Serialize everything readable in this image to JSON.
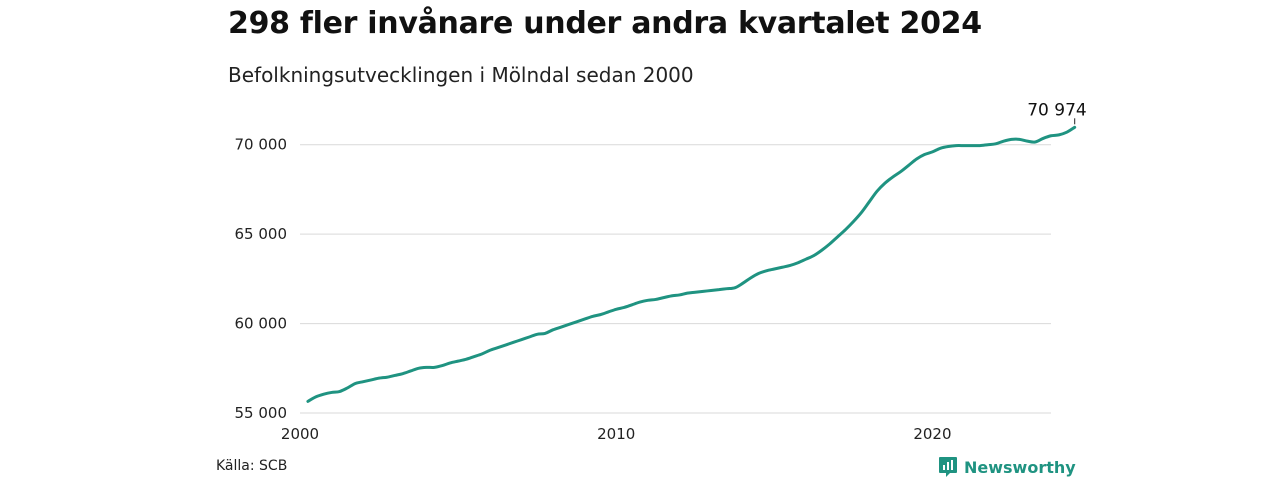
{
  "title": "298 fler invånare under andra kvartalet 2024",
  "subtitle": "Befolkningsutvecklingen i Mölndal sedan 2000",
  "source": "Källa: SCB",
  "brand": {
    "name": "Newsworthy",
    "icon": "newsworthy-logo-icon",
    "color": "#1f9381"
  },
  "line_color": "#1f9381",
  "chart_data": {
    "type": "line",
    "title": "298 fler invånare under andra kvartalet 2024",
    "subtitle": "Befolkningsutvecklingen i Mölndal sedan 2000",
    "xlabel": "",
    "ylabel": "",
    "xlim": [
      2000,
      2025.3
    ],
    "ylim": [
      55000,
      72500
    ],
    "y_ticks": [
      55000,
      60000,
      65000,
      70000
    ],
    "y_tick_labels": [
      "55 000",
      "60 000",
      "65 000",
      "70 000"
    ],
    "x_ticks": [
      2000,
      2010,
      2020
    ],
    "x_tick_labels": [
      "2000",
      "2010",
      "2020"
    ],
    "grid": true,
    "end_label": "70 974",
    "series": [
      {
        "name": "",
        "x": [
          2000.25,
          2000.5,
          2000.75,
          2001.0,
          2001.25,
          2001.5,
          2001.75,
          2002.0,
          2002.25,
          2002.5,
          2002.75,
          2003.0,
          2003.25,
          2003.5,
          2003.75,
          2004.0,
          2004.25,
          2004.5,
          2004.75,
          2005.0,
          2005.25,
          2005.5,
          2005.75,
          2006.0,
          2006.25,
          2006.5,
          2006.75,
          2007.0,
          2007.25,
          2007.5,
          2007.75,
          2008.0,
          2008.25,
          2008.5,
          2008.75,
          2009.0,
          2009.25,
          2009.5,
          2009.75,
          2010.0,
          2010.25,
          2010.5,
          2010.75,
          2011.0,
          2011.25,
          2011.5,
          2011.75,
          2012.0,
          2012.25,
          2012.5,
          2012.75,
          2013.0,
          2013.25,
          2013.5,
          2013.75,
          2014.0,
          2014.25,
          2014.5,
          2014.75,
          2015.0,
          2015.25,
          2015.5,
          2015.75,
          2016.0,
          2016.25,
          2016.5,
          2016.75,
          2017.0,
          2017.25,
          2017.5,
          2017.75,
          2018.0,
          2018.25,
          2018.5,
          2018.75,
          2019.0,
          2019.25,
          2019.5,
          2019.75,
          2020.0,
          2020.25,
          2020.5,
          2020.75,
          2021.0,
          2021.25,
          2021.5,
          2021.75,
          2022.0,
          2022.25,
          2022.5,
          2022.75,
          2023.0,
          2023.25,
          2023.5,
          2023.75,
          2024.0,
          2024.25,
          2024.5
        ],
        "values": [
          55650,
          55900,
          56050,
          56150,
          56200,
          56400,
          56650,
          56750,
          56850,
          56950,
          57000,
          57100,
          57200,
          57350,
          57500,
          57550,
          57550,
          57650,
          57800,
          57900,
          58000,
          58150,
          58300,
          58500,
          58650,
          58800,
          58950,
          59100,
          59250,
          59400,
          59450,
          59650,
          59800,
          59950,
          60100,
          60250,
          60400,
          60500,
          60650,
          60800,
          60900,
          61050,
          61200,
          61300,
          61350,
          61450,
          61550,
          61600,
          61700,
          61750,
          61800,
          61850,
          61900,
          61950,
          62000,
          62250,
          62550,
          62800,
          62950,
          63050,
          63150,
          63250,
          63400,
          63600,
          63800,
          64100,
          64450,
          64850,
          65250,
          65700,
          66200,
          66800,
          67400,
          67850,
          68200,
          68500,
          68850,
          69200,
          69450,
          69600,
          69800,
          69900,
          69950,
          69950,
          69950,
          69950,
          70000,
          70050,
          70200,
          70300,
          70300,
          70200,
          70150,
          70350,
          70500,
          70550,
          70700,
          70974
        ]
      }
    ]
  }
}
